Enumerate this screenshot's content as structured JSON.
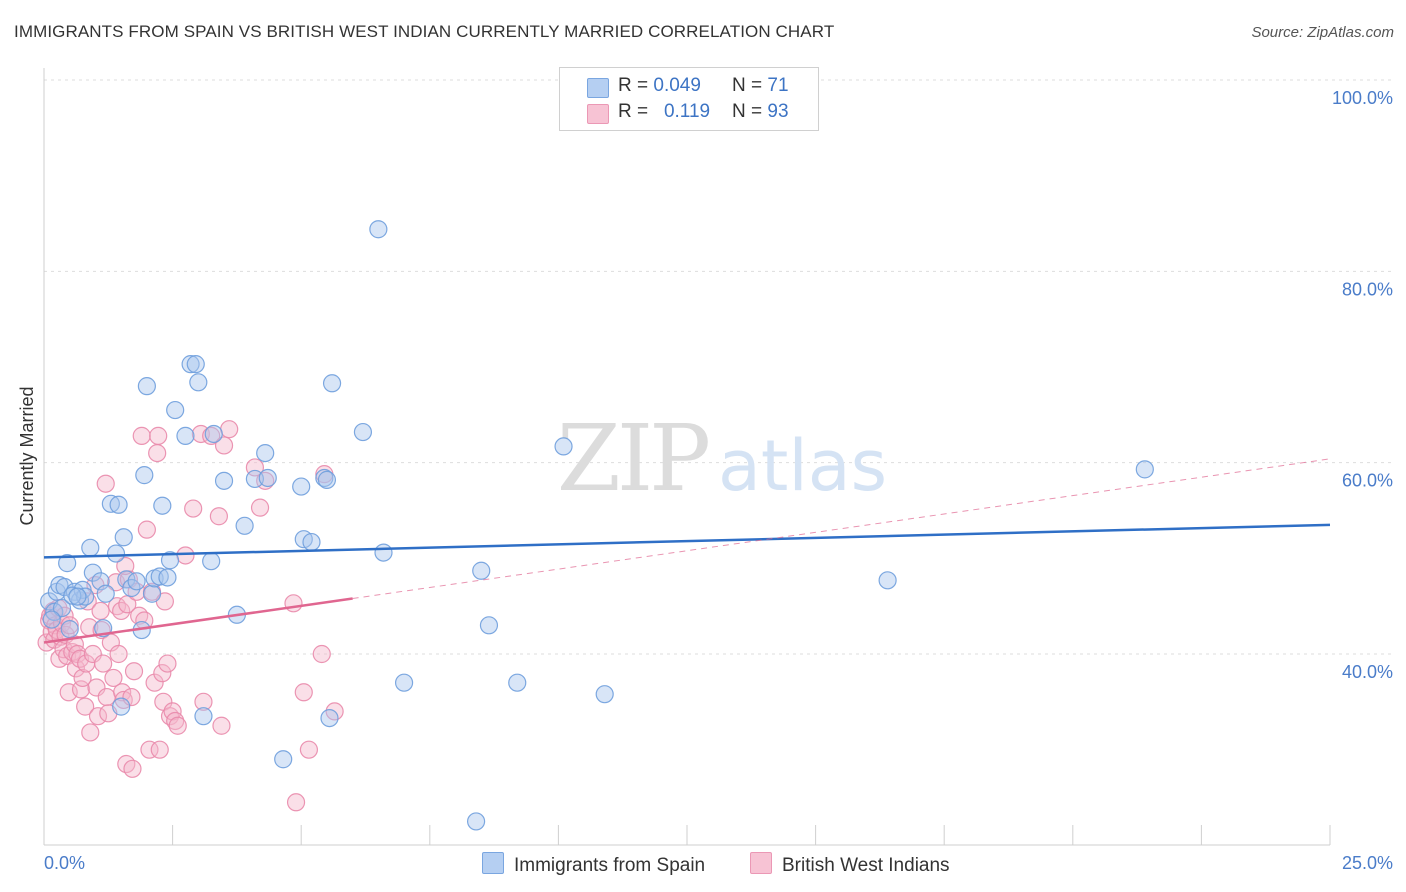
{
  "title": "IMMIGRANTS FROM SPAIN VS BRITISH WEST INDIAN CURRENTLY MARRIED CORRELATION CHART",
  "source": "Source: ZipAtlas.com",
  "watermark": {
    "zip": "ZIP",
    "atlas": "atlas"
  },
  "colors": {
    "blue_fill": "#a9c6ee",
    "blue_stroke": "#6f9fdd",
    "blue_line": "#2f6fc6",
    "pink_fill": "#f5b7cb",
    "pink_stroke": "#e98aab",
    "pink_line": "#e06690",
    "tick_text": "#4a7cc9",
    "grid": "#dddddd"
  },
  "legend": {
    "rows": [
      {
        "r_label": "R =",
        "r_value": "0.049",
        "n_label": "N =",
        "n_value": "71",
        "swatch": "#b5cff2"
      },
      {
        "r_label": "R =",
        "r_value": "0.119",
        "n_label": "N =",
        "n_value": "93",
        "swatch": "#f7c3d4"
      }
    ]
  },
  "bottom_legend": [
    "Immigrants from Spain",
    "British West Indians"
  ],
  "chart_data": {
    "type": "scatter",
    "title": "IMMIGRANTS FROM SPAIN VS BRITISH WEST INDIAN CURRENTLY MARRIED CORRELATION CHART",
    "xlabel": "",
    "ylabel": "Currently Married",
    "xlim": [
      0,
      25
    ],
    "ylim": [
      20,
      100
    ],
    "y_ticks": [
      {
        "value": 100,
        "label": "100.0%"
      },
      {
        "value": 80,
        "label": "80.0%"
      },
      {
        "value": 60,
        "label": "60.0%"
      },
      {
        "value": 40,
        "label": "40.0%"
      }
    ],
    "x_tick_labels": [
      {
        "value": 0,
        "label": "0.0%"
      },
      {
        "value": 25,
        "label": "25.0%"
      }
    ],
    "grid": true,
    "series": [
      {
        "name": "Immigrants from Spain",
        "points": [
          [
            0.1,
            45.5
          ],
          [
            0.2,
            44.4
          ],
          [
            0.25,
            46.5
          ],
          [
            0.3,
            47.2
          ],
          [
            0.35,
            44.8
          ],
          [
            0.4,
            47.0
          ],
          [
            0.45,
            49.5
          ],
          [
            0.6,
            46.5
          ],
          [
            0.7,
            45.6
          ],
          [
            0.75,
            46.7
          ],
          [
            0.8,
            46.0
          ],
          [
            0.9,
            51.1
          ],
          [
            0.95,
            48.5
          ],
          [
            1.1,
            47.6
          ],
          [
            1.15,
            42.7
          ],
          [
            1.3,
            55.7
          ],
          [
            1.4,
            50.5
          ],
          [
            1.45,
            55.6
          ],
          [
            1.55,
            52.2
          ],
          [
            1.6,
            47.8
          ],
          [
            1.7,
            46.9
          ],
          [
            1.8,
            47.6
          ],
          [
            1.9,
            42.5
          ],
          [
            1.95,
            58.7
          ],
          [
            2.0,
            68.0
          ],
          [
            2.1,
            46.3
          ],
          [
            2.15,
            47.9
          ],
          [
            2.25,
            48.1
          ],
          [
            2.3,
            55.5
          ],
          [
            2.45,
            49.8
          ],
          [
            2.55,
            65.5
          ],
          [
            2.75,
            62.8
          ],
          [
            2.85,
            70.3
          ],
          [
            2.95,
            70.3
          ],
          [
            3.0,
            68.4
          ],
          [
            3.1,
            33.5
          ],
          [
            3.3,
            63.0
          ],
          [
            3.5,
            58.1
          ],
          [
            3.75,
            44.1
          ],
          [
            3.9,
            53.4
          ],
          [
            4.1,
            58.3
          ],
          [
            4.3,
            61.0
          ],
          [
            4.35,
            58.4
          ],
          [
            4.65,
            29.0
          ],
          [
            5.0,
            57.5
          ],
          [
            5.05,
            52.0
          ],
          [
            5.2,
            51.7
          ],
          [
            5.45,
            58.4
          ],
          [
            5.5,
            58.2
          ],
          [
            5.55,
            33.3
          ],
          [
            5.6,
            68.3
          ],
          [
            6.2,
            63.2
          ],
          [
            6.5,
            84.4
          ],
          [
            6.6,
            50.6
          ],
          [
            7.0,
            37.0
          ],
          [
            8.4,
            22.5
          ],
          [
            8.5,
            48.7
          ],
          [
            8.65,
            43.0
          ],
          [
            9.2,
            37.0
          ],
          [
            10.1,
            61.7
          ],
          [
            10.9,
            35.8
          ],
          [
            16.4,
            47.7
          ],
          [
            21.4,
            59.3
          ],
          [
            0.15,
            43.6
          ],
          [
            0.5,
            42.6
          ],
          [
            0.55,
            46.1
          ],
          [
            1.2,
            46.3
          ],
          [
            1.5,
            34.5
          ],
          [
            2.4,
            48.0
          ],
          [
            3.25,
            49.7
          ],
          [
            0.65,
            46.0
          ]
        ],
        "trend": {
          "x": [
            0,
            25
          ],
          "y": [
            50.1,
            53.5
          ]
        }
      },
      {
        "name": "British West Indians",
        "points": [
          [
            0.05,
            41.2
          ],
          [
            0.1,
            43.5
          ],
          [
            0.12,
            44.0
          ],
          [
            0.15,
            42.3
          ],
          [
            0.18,
            44.5
          ],
          [
            0.2,
            41.5
          ],
          [
            0.22,
            43.0
          ],
          [
            0.25,
            42.5
          ],
          [
            0.28,
            44.8
          ],
          [
            0.3,
            39.5
          ],
          [
            0.32,
            41.8
          ],
          [
            0.35,
            43.2
          ],
          [
            0.38,
            40.5
          ],
          [
            0.4,
            44.0
          ],
          [
            0.42,
            42.0
          ],
          [
            0.45,
            39.8
          ],
          [
            0.48,
            36.0
          ],
          [
            0.5,
            43.0
          ],
          [
            0.55,
            40.2
          ],
          [
            0.6,
            41.0
          ],
          [
            0.62,
            38.5
          ],
          [
            0.65,
            40.0
          ],
          [
            0.7,
            39.5
          ],
          [
            0.72,
            36.3
          ],
          [
            0.75,
            37.5
          ],
          [
            0.8,
            34.5
          ],
          [
            0.82,
            39.0
          ],
          [
            0.85,
            45.5
          ],
          [
            0.88,
            42.8
          ],
          [
            0.9,
            31.8
          ],
          [
            0.95,
            40.0
          ],
          [
            1.0,
            47.2
          ],
          [
            1.02,
            36.5
          ],
          [
            1.05,
            33.5
          ],
          [
            1.1,
            44.5
          ],
          [
            1.12,
            42.5
          ],
          [
            1.15,
            39.0
          ],
          [
            1.2,
            57.8
          ],
          [
            1.22,
            35.5
          ],
          [
            1.25,
            33.8
          ],
          [
            1.3,
            41.2
          ],
          [
            1.35,
            37.5
          ],
          [
            1.4,
            47.5
          ],
          [
            1.42,
            45.0
          ],
          [
            1.45,
            40.0
          ],
          [
            1.5,
            44.5
          ],
          [
            1.52,
            36.0
          ],
          [
            1.55,
            35.2
          ],
          [
            1.6,
            28.5
          ],
          [
            1.62,
            45.2
          ],
          [
            1.65,
            47.8
          ],
          [
            1.7,
            35.5
          ],
          [
            1.72,
            28.0
          ],
          [
            1.75,
            38.2
          ],
          [
            1.8,
            46.5
          ],
          [
            1.85,
            44.0
          ],
          [
            1.9,
            62.8
          ],
          [
            1.95,
            43.5
          ],
          [
            2.0,
            53.0
          ],
          [
            2.05,
            30.0
          ],
          [
            2.1,
            46.5
          ],
          [
            2.15,
            37.0
          ],
          [
            2.2,
            61.0
          ],
          [
            2.22,
            62.8
          ],
          [
            2.25,
            30.0
          ],
          [
            2.3,
            38.0
          ],
          [
            2.32,
            35.0
          ],
          [
            2.35,
            45.5
          ],
          [
            2.4,
            39.0
          ],
          [
            2.45,
            33.5
          ],
          [
            2.5,
            34.0
          ],
          [
            2.55,
            33.0
          ],
          [
            2.6,
            32.5
          ],
          [
            2.75,
            50.3
          ],
          [
            2.9,
            55.2
          ],
          [
            3.05,
            63.0
          ],
          [
            3.1,
            35.0
          ],
          [
            3.25,
            62.8
          ],
          [
            3.4,
            54.4
          ],
          [
            3.45,
            32.5
          ],
          [
            3.5,
            61.8
          ],
          [
            3.6,
            63.5
          ],
          [
            4.1,
            59.5
          ],
          [
            4.2,
            55.3
          ],
          [
            4.3,
            58.1
          ],
          [
            4.9,
            24.5
          ],
          [
            5.05,
            36.0
          ],
          [
            5.15,
            30.0
          ],
          [
            5.4,
            40.0
          ],
          [
            5.45,
            58.8
          ],
          [
            5.65,
            34.0
          ],
          [
            4.85,
            45.3
          ],
          [
            1.58,
            49.2
          ]
        ],
        "trend": {
          "x": [
            0,
            6.0
          ],
          "y": [
            41.2,
            45.8
          ]
        },
        "trend_extended": {
          "x": [
            6.0,
            25
          ],
          "y": [
            45.8,
            60.4
          ]
        }
      }
    ]
  }
}
